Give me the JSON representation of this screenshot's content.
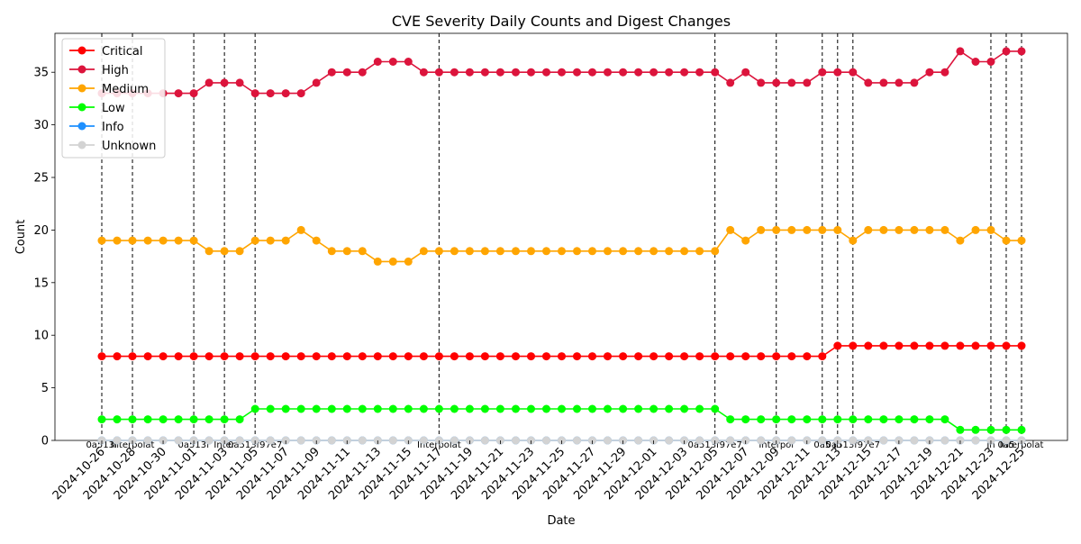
{
  "chart_data": {
    "type": "line",
    "title": "CVE Severity Daily Counts and Digest Changes",
    "xlabel": "Date",
    "ylabel": "Count",
    "ylim": [
      0,
      38.7
    ],
    "yticks": [
      0,
      5,
      10,
      15,
      20,
      25,
      30,
      35
    ],
    "grid": false,
    "legend_position": "top-left",
    "start_date": "2024-10-26",
    "xtick_labels": [
      "2024-10-26",
      "2024-10-28",
      "2024-10-30",
      "2024-11-01",
      "2024-11-03",
      "2024-11-05",
      "2024-11-07",
      "2024-11-09",
      "2024-11-11",
      "2024-11-13",
      "2024-11-15",
      "2024-11-17",
      "2024-11-19",
      "2024-11-21",
      "2024-11-23",
      "2024-11-25",
      "2024-11-27",
      "2024-11-29",
      "2024-12-01",
      "2024-12-03",
      "2024-12-05",
      "2024-12-07",
      "2024-12-09",
      "2024-12-11",
      "2024-12-13",
      "2024-12-15",
      "2024-12-17",
      "2024-12-19",
      "2024-12-21",
      "2024-12-23",
      "2024-12-25"
    ],
    "series": [
      {
        "name": "Critical",
        "color": "#ff0000",
        "values": [
          8,
          8,
          8,
          8,
          8,
          8,
          8,
          8,
          8,
          8,
          8,
          8,
          8,
          8,
          8,
          8,
          8,
          8,
          8,
          8,
          8,
          8,
          8,
          8,
          8,
          8,
          8,
          8,
          8,
          8,
          8,
          8,
          8,
          8,
          8,
          8,
          8,
          8,
          8,
          8,
          8,
          8,
          8,
          8,
          8,
          8,
          8,
          8,
          9,
          9,
          9,
          9,
          9,
          9,
          9,
          9,
          9,
          9,
          9,
          9,
          9
        ]
      },
      {
        "name": "High",
        "color": "#dc143c",
        "values": [
          33,
          33,
          33,
          33,
          33,
          33,
          33,
          34,
          34,
          34,
          33,
          33,
          33,
          33,
          34,
          35,
          35,
          35,
          36,
          36,
          36,
          35,
          35,
          35,
          35,
          35,
          35,
          35,
          35,
          35,
          35,
          35,
          35,
          35,
          35,
          35,
          35,
          35,
          35,
          35,
          35,
          34,
          35,
          34,
          34,
          34,
          34,
          35,
          35,
          35,
          34,
          34,
          34,
          34,
          35,
          35,
          37,
          36,
          36,
          37,
          37
        ]
      },
      {
        "name": "Medium",
        "color": "#ffa500",
        "values": [
          19,
          19,
          19,
          19,
          19,
          19,
          19,
          18,
          18,
          18,
          19,
          19,
          19,
          20,
          19,
          18,
          18,
          18,
          17,
          17,
          17,
          18,
          18,
          18,
          18,
          18,
          18,
          18,
          18,
          18,
          18,
          18,
          18,
          18,
          18,
          18,
          18,
          18,
          18,
          18,
          18,
          20,
          19,
          20,
          20,
          20,
          20,
          20,
          20,
          19,
          20,
          20,
          20,
          20,
          20,
          20,
          19,
          20,
          20,
          19,
          19
        ]
      },
      {
        "name": "Low",
        "color": "#00ff00",
        "values": [
          2,
          2,
          2,
          2,
          2,
          2,
          2,
          2,
          2,
          2,
          3,
          3,
          3,
          3,
          3,
          3,
          3,
          3,
          3,
          3,
          3,
          3,
          3,
          3,
          3,
          3,
          3,
          3,
          3,
          3,
          3,
          3,
          3,
          3,
          3,
          3,
          3,
          3,
          3,
          3,
          3,
          2,
          2,
          2,
          2,
          2,
          2,
          2,
          2,
          2,
          2,
          2,
          2,
          2,
          2,
          2,
          1,
          1,
          1,
          1,
          1
        ]
      },
      {
        "name": "Info",
        "color": "#1e90ff",
        "values": [
          0,
          0,
          0,
          0,
          0,
          0,
          0,
          0,
          0,
          0,
          0,
          0,
          0,
          0,
          0,
          0,
          0,
          0,
          0,
          0,
          0,
          0,
          0,
          0,
          0,
          0,
          0,
          0,
          0,
          0,
          0,
          0,
          0,
          0,
          0,
          0,
          0,
          0,
          0,
          0,
          0,
          0,
          0,
          0,
          0,
          0,
          0,
          0,
          0,
          0,
          0,
          0,
          0,
          0,
          0,
          0,
          0,
          0,
          0,
          0,
          0
        ]
      },
      {
        "name": "Unknown",
        "color": "#d3d3d3",
        "values": [
          0,
          0,
          0,
          0,
          0,
          0,
          0,
          0,
          0,
          0,
          0,
          0,
          0,
          0,
          0,
          0,
          0,
          0,
          0,
          0,
          0,
          0,
          0,
          0,
          0,
          0,
          0,
          0,
          0,
          0,
          0,
          0,
          0,
          0,
          0,
          0,
          0,
          0,
          0,
          0,
          0,
          0,
          0,
          0,
          0,
          0,
          0,
          0,
          0,
          0,
          0,
          0,
          0,
          0,
          0,
          0,
          0,
          0,
          0,
          0,
          0
        ]
      }
    ],
    "digest_changes": [
      {
        "date": "2024-10-26",
        "label": "0a513f"
      },
      {
        "date": "2024-10-28",
        "label": "Interpolat"
      },
      {
        "date": "2024-11-01",
        "label": "0a513f"
      },
      {
        "date": "2024-11-03",
        "label": "Inter"
      },
      {
        "date": "2024-11-05",
        "label": "0a513f97e7"
      },
      {
        "date": "2024-11-17",
        "label": "Interpolat"
      },
      {
        "date": "2024-12-05",
        "label": "0a513f97e7"
      },
      {
        "date": "2024-12-09",
        "label": "Interpol"
      },
      {
        "date": "2024-12-12",
        "label": "0a5"
      },
      {
        "date": "2024-12-13",
        "label": "In"
      },
      {
        "date": "2024-12-14",
        "label": "0a513f97e7"
      },
      {
        "date": "2024-12-23",
        "label": "In"
      },
      {
        "date": "2024-12-24",
        "label": "0a5"
      },
      {
        "date": "2024-12-25",
        "label": "Interpolat"
      }
    ]
  }
}
